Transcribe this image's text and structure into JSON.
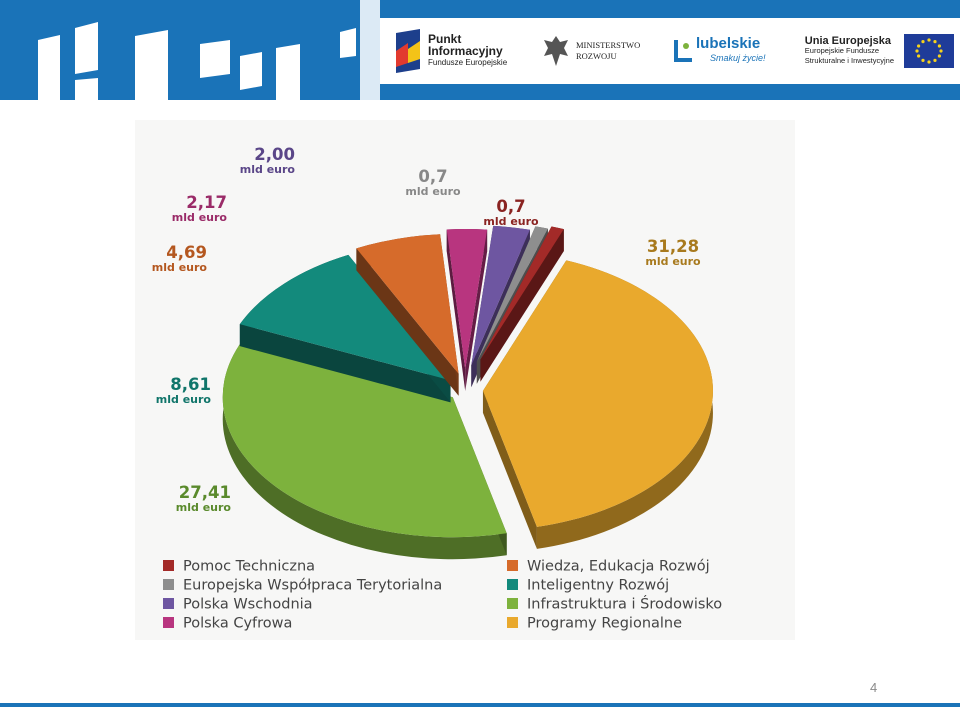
{
  "header": {
    "logos": {
      "punkt": {
        "line1": "Punkt",
        "line2": "Informacyjny",
        "line3": "Fundusze Europejskie"
      },
      "ministerstwo": {
        "line1": "MINISTERSTWO",
        "line2": "ROZWOJU"
      },
      "lubelskie": {
        "name": "lubelskie",
        "slogan": "Smakuj życie!"
      },
      "ue": {
        "title": "Unia Europejska",
        "line2": "Europejskie Fundusze",
        "line3": "Strukturalne i Inwestycyjne"
      }
    },
    "accent_color": "#1a73b8"
  },
  "page_number": "4",
  "chart_data": {
    "type": "pie",
    "unit": "mld euro",
    "slices": [
      {
        "name": "Programy Regionalne",
        "value": 31.28,
        "label": "31,28",
        "color": "#e9a92d"
      },
      {
        "name": "Infrastruktura i Środowisko",
        "value": 27.41,
        "label": "27,41",
        "color": "#7db23d"
      },
      {
        "name": "Inteligentny Rozwój",
        "value": 8.61,
        "label": "8,61",
        "color": "#138a7c"
      },
      {
        "name": "Wiedza, Edukacja Rozwój",
        "value": 4.69,
        "label": "4,69",
        "color": "#d66b2b"
      },
      {
        "name": "Polska Cyfrowa",
        "value": 2.17,
        "label": "2,17",
        "color": "#b8357f"
      },
      {
        "name": "Polska Wschodnia",
        "value": 2.0,
        "label": "2,00",
        "color": "#6e56a1"
      },
      {
        "name": "Europejska Współpraca Terytorialna",
        "value": 0.7,
        "label": "0,7",
        "color": "#8e8e8e"
      },
      {
        "name": "Pomoc Techniczna",
        "value": 0.7,
        "label": "0,7",
        "color": "#a32a28"
      }
    ],
    "legend": {
      "placement": "bottom",
      "left": [
        "Pomoc Techniczna",
        "Europejska Współpraca Terytorialna",
        "Polska Wschodnia",
        "Polska Cyfrowa"
      ],
      "right": [
        "Wiedza, Edukacja Rozwój",
        "Inteligentny Rozwój",
        "Infrastruktura i Środowisko",
        "Programy Regionalne"
      ]
    }
  }
}
